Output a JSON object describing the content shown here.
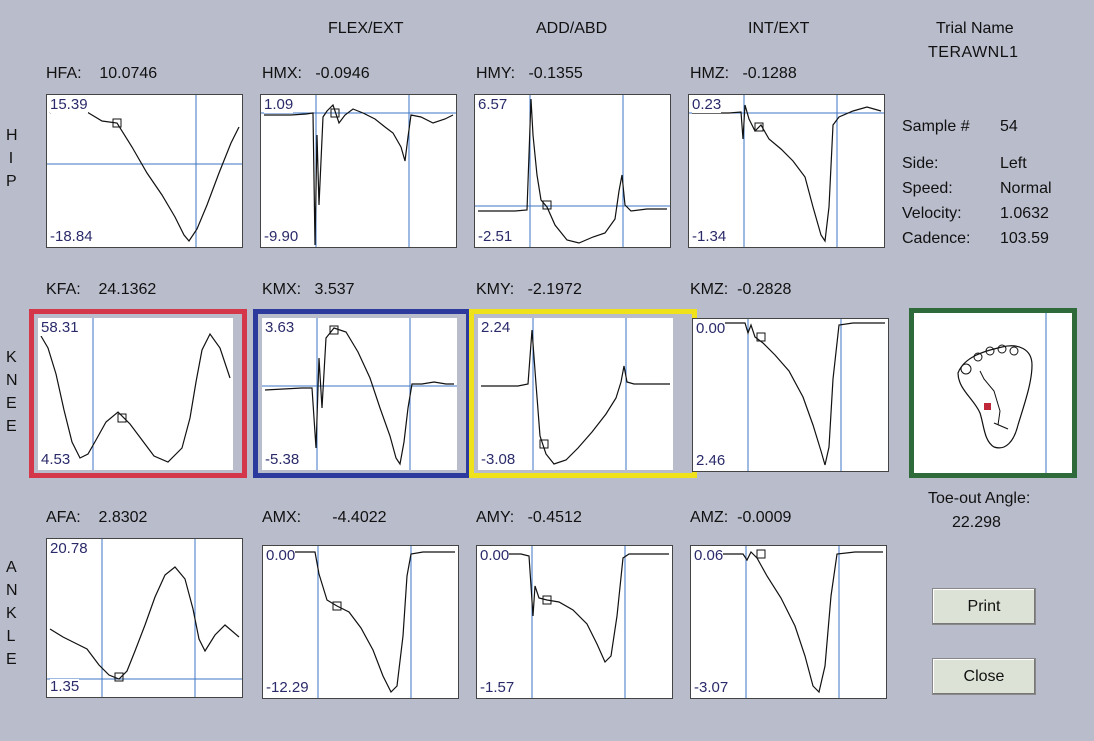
{
  "headers": {
    "flex": "FLEX/EXT",
    "add": "ADD/ABD",
    "int": "INT/EXT",
    "trial_label": "Trial Name",
    "trial_value": "TERAWNL1"
  },
  "side_labels": {
    "hip": "HIP",
    "knee": "KNEE",
    "ankle": "ANKLE"
  },
  "values": {
    "HFA": {
      "label": "HFA:",
      "value": "10.0746"
    },
    "HMX": {
      "label": "HMX:",
      "value": "-0.0946"
    },
    "HMY": {
      "label": "HMY:",
      "value": "-0.1355"
    },
    "HMZ": {
      "label": "HMZ:",
      "value": "-0.1288"
    },
    "KFA": {
      "label": "KFA:",
      "value": "24.1362"
    },
    "KMX": {
      "label": "KMX:",
      "value": "3.537"
    },
    "KMY": {
      "label": "KMY:",
      "value": "-2.1972"
    },
    "KMZ": {
      "label": "KMZ:",
      "value": "-0.2828"
    },
    "AFA": {
      "label": "AFA:",
      "value": "2.8302"
    },
    "AMX": {
      "label": "AMX:",
      "value": "-4.4022"
    },
    "AMY": {
      "label": "AMY:",
      "value": "-0.4512"
    },
    "AMZ": {
      "label": "AMZ:",
      "value": "-0.0009"
    }
  },
  "panels": {
    "HFA": {
      "max": "15.39",
      "min": "-18.84"
    },
    "HMX": {
      "max": "1.09",
      "min": "-9.90"
    },
    "HMY": {
      "max": "6.57",
      "min": "-2.51"
    },
    "HMZ": {
      "max": "0.23",
      "min": "-1.34"
    },
    "KFA": {
      "max": "58.31",
      "min": "4.53"
    },
    "KMX": {
      "max": "3.63",
      "min": "-5.38"
    },
    "KMY": {
      "max": "2.24",
      "min": "-3.08"
    },
    "KMZ": {
      "max": "0.00",
      "min": "2.46"
    },
    "AFA": {
      "max": "20.78",
      "min": "1.35"
    },
    "AMX": {
      "max": "0.00",
      "min": "-12.29"
    },
    "AMY": {
      "max": "0.00",
      "min": "-1.57"
    },
    "AMZ": {
      "max": "0.06",
      "min": "-3.07"
    }
  },
  "info": {
    "sample_label": "Sample #",
    "sample_value": "54",
    "side_label": "Side:",
    "side_value": "Left",
    "speed_label": "Speed:",
    "speed_value": "Normal",
    "velocity_label": "Velocity:",
    "velocity_value": "1.0632",
    "cadence_label": "Cadence:",
    "cadence_value": "103.59"
  },
  "toe_out": {
    "label": "Toe-out Angle:",
    "value": "22.298"
  },
  "buttons": {
    "print": "Print",
    "close": "Close"
  },
  "colors": {
    "knee_fa": "#d4364a",
    "knee_mx": "#2c3a9e",
    "knee_my": "#efe21a",
    "foot": "#2f6b3a"
  }
}
